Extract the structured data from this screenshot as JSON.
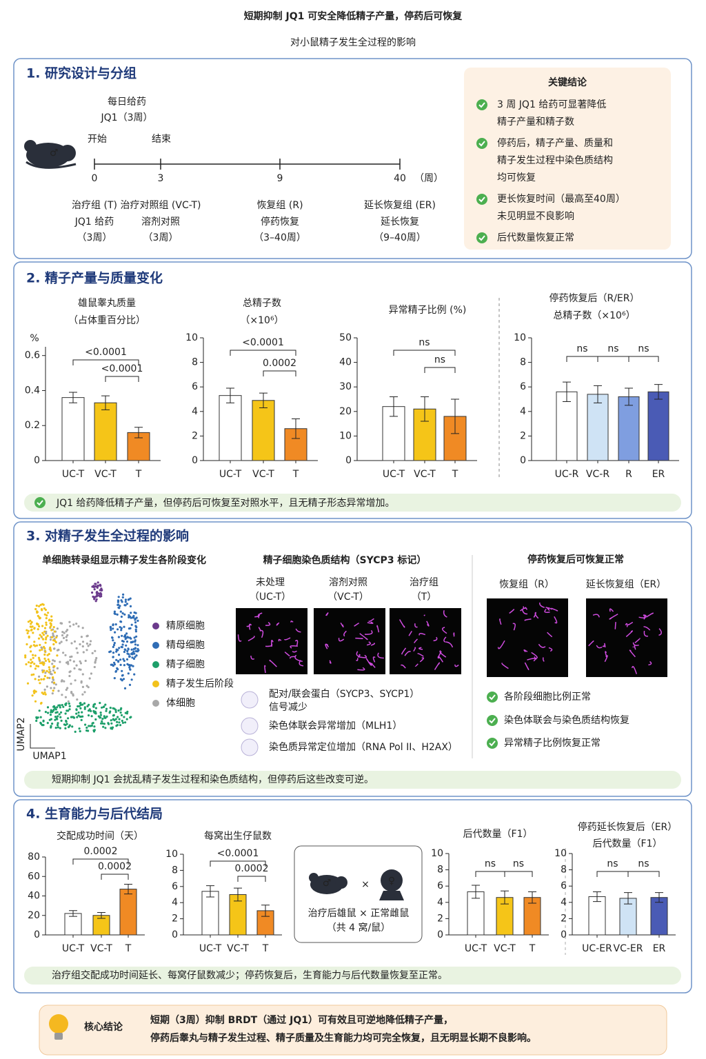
{
  "header": {
    "title": "短期抑制 JQ1 可安全降低精子产量，停药后可恢复",
    "subtitle": "对小鼠精子发生全过程的影响"
  },
  "section1": {
    "title": "1. 研究设计与分组",
    "dosing": [
      "每日给药",
      "JQ1（3周）"
    ],
    "start": "开始",
    "end": "结束",
    "timeline_ticks": [
      0,
      3,
      9,
      40
    ],
    "timeline_unit": "（周）",
    "groups": [
      {
        "name": "治疗组 (T)",
        "color": "#f08a24",
        "lines": [
          "JQ1 给药",
          "（3周）"
        ]
      },
      {
        "name": "治疗对照组 (VC-T)",
        "color": "#eeaa14",
        "lines": [
          "溶剂对照",
          "（3周）"
        ]
      },
      {
        "name": "恢复组 (R)",
        "color": "#2f5fb5",
        "lines": [
          "停药恢复",
          "（3–40周）"
        ]
      },
      {
        "name": "延长恢复组 (ER)",
        "color": "#3a8ad0",
        "lines": [
          "延长恢复",
          "（9–40周）"
        ]
      }
    ],
    "key": {
      "title": "关键结论",
      "items": [
        [
          "3 周 JQ1 给药可显著降低",
          "精子产量和精子数"
        ],
        [
          "停药后，精子产量、质量和",
          "精子发生过程中染色质结构",
          "均可恢复"
        ],
        [
          "更长恢复时间（最高至40周）",
          "未见明显不良影响"
        ],
        [
          "后代数量恢复正常"
        ]
      ]
    }
  },
  "section2": {
    "title": "2. 精子产量与质量变化",
    "note": "JQ1 给药降低精子产量，但停药后可恢复至对照水平，且无精子形态异常增加。"
  },
  "section3": {
    "title": "3. 对精子发生全过程的影响",
    "umap_title": "单细胞转录组显示精子发生各阶段变化",
    "umap_legend": [
      {
        "name": "精原细胞",
        "color": "#6b3a8c"
      },
      {
        "name": "精母细胞",
        "color": "#2f6db5"
      },
      {
        "name": "精子细胞",
        "color": "#1d9f6a"
      },
      {
        "name": "精子发生后阶段",
        "color": "#f2c21b"
      },
      {
        "name": "体细胞",
        "color": "#a8a8a8"
      }
    ],
    "umap_x": "UMAP1",
    "umap_y": "UMAP2",
    "chromatin_title": "精子细胞染色质结构（SYCP3 标记）",
    "chromatin_columns": [
      {
        "lines": [
          "未处理",
          "（UC-T）"
        ],
        "color": "#222222"
      },
      {
        "lines": [
          "溶剂对照",
          "（VC-T）"
        ],
        "color": "#222222"
      },
      {
        "lines": [
          "治疗组",
          "（T）"
        ],
        "color": "#f08a24"
      }
    ],
    "findings": [
      [
        "配对/联会蛋白（SYCP3、SYCP1）",
        "信号减少"
      ],
      [
        "染色体联会异常增加（MLH1）"
      ],
      [
        "染色质异常定位增加（RNA Pol II、H2AX）"
      ]
    ],
    "recovery_title": "停药恢复后可恢复正常",
    "recovery_columns": [
      {
        "label": "恢复组（R）",
        "color": "#5a3a9c"
      },
      {
        "label": "延长恢复组（ER）",
        "color": "#2f7fd0"
      }
    ],
    "recovery_checks": [
      "各阶段细胞比例正常",
      "染色体联会与染色质结构恢复",
      "异常精子比例恢复正常"
    ],
    "note": "短期抑制 JQ1 会扰乱精子发生过程和染色质结构，但停药后这些改变可逆。"
  },
  "section4": {
    "title": "4. 生育能力与后代结局",
    "cross": "×",
    "mating": [
      "治疗后雄鼠 × 正常雌鼠",
      "（共 4 窝/鼠）"
    ],
    "note": "治疗组交配成功时间延长、每窝仔鼠数减少；停药恢复后，生育能力与后代数量恢复至正常。"
  },
  "footer": {
    "title": "核心结论",
    "lines": [
      "短期（3周）抑制 BRDT（通过 JQ1）可有效且可逆地降低精子产量，",
      "停药后睾丸与精子发生过程、精子质量及生育能力均可完全恢复，且无明显长期不良影响。"
    ]
  },
  "chart_data": [
    {
      "type": "bar",
      "title": [
        "雄鼠睾丸质量",
        "（占体重百分比）"
      ],
      "unit": "%",
      "categories": [
        "UC-T",
        "VC-T",
        "T"
      ],
      "values": [
        0.36,
        0.33,
        0.16
      ],
      "errors": [
        0.03,
        0.04,
        0.03
      ],
      "colors": [
        "#ffffff",
        "#f5c518",
        "#f08a24"
      ],
      "ylim": [
        0,
        0.65
      ],
      "yticks": [
        0,
        0.2,
        0.4,
        0.6
      ],
      "comparisons": [
        "<0.0001",
        "<0.0001"
      ]
    },
    {
      "type": "bar",
      "title": [
        "总精子数",
        "（×10⁶）"
      ],
      "categories": [
        "UC-T",
        "VC-T",
        "T"
      ],
      "values": [
        5.3,
        4.9,
        2.6
      ],
      "errors": [
        0.6,
        0.6,
        0.8
      ],
      "colors": [
        "#ffffff",
        "#f5c518",
        "#f08a24"
      ],
      "ylim": [
        0,
        10
      ],
      "yticks": [
        0,
        2,
        4,
        6,
        8,
        10
      ],
      "comparisons": [
        "<0.0001",
        "0.0002"
      ]
    },
    {
      "type": "bar",
      "title": [
        "异常精子比例 (%)"
      ],
      "categories": [
        "UC-T",
        "VC-T",
        "T"
      ],
      "values": [
        22,
        21,
        18
      ],
      "errors": [
        4,
        5,
        7
      ],
      "colors": [
        "#ffffff",
        "#f5c518",
        "#f08a24"
      ],
      "ylim": [
        0,
        50
      ],
      "yticks": [
        0,
        10,
        20,
        30,
        40,
        50
      ],
      "comparisons": [
        "ns",
        "ns"
      ]
    },
    {
      "type": "bar",
      "title": [
        "停药恢复后（R/ER）",
        "总精子数（×10⁶）"
      ],
      "categories": [
        "UC-R",
        "VC-R",
        "R",
        "ER"
      ],
      "values": [
        5.6,
        5.4,
        5.2,
        5.6
      ],
      "errors": [
        0.8,
        0.7,
        0.7,
        0.6
      ],
      "colors": [
        "#ffffff",
        "#cfe3f5",
        "#7f9ee0",
        "#4a5bb5"
      ],
      "ylim": [
        0,
        10
      ],
      "yticks": [
        0,
        2,
        4,
        6,
        8,
        10
      ],
      "comparisons": [
        "ns",
        "ns",
        "ns"
      ]
    },
    {
      "type": "bar",
      "title": [
        "交配成功时间（天）"
      ],
      "categories": [
        "UC-T",
        "VC-T",
        "T"
      ],
      "values": [
        22,
        20,
        47
      ],
      "errors": [
        3,
        3,
        5
      ],
      "colors": [
        "#ffffff",
        "#f5c518",
        "#f08a24"
      ],
      "ylim": [
        0,
        80
      ],
      "yticks": [
        0,
        20,
        40,
        60,
        80
      ],
      "comparisons": [
        "0.0002",
        "0.0002"
      ]
    },
    {
      "type": "bar",
      "title": [
        "每窝出生仔鼠数"
      ],
      "categories": [
        "UC-T",
        "VC-T",
        "T"
      ],
      "values": [
        5.4,
        5.0,
        3.0
      ],
      "errors": [
        0.7,
        0.8,
        0.7
      ],
      "colors": [
        "#ffffff",
        "#f5c518",
        "#f08a24"
      ],
      "ylim": [
        0,
        10
      ],
      "yticks": [
        0,
        2,
        4,
        6,
        8,
        10
      ],
      "comparisons": [
        "<0.0001",
        "0.0002"
      ]
    },
    {
      "type": "bar",
      "title": [
        "后代数量（F1）"
      ],
      "categories": [
        "UC-T",
        "VC-T",
        "T"
      ],
      "values": [
        5.3,
        4.6,
        4.6
      ],
      "errors": [
        0.8,
        0.8,
        0.7
      ],
      "colors": [
        "#ffffff",
        "#f5c518",
        "#f08a24"
      ],
      "ylim": [
        0,
        10
      ],
      "yticks": [
        0,
        2,
        4,
        6,
        8,
        10
      ],
      "comparisons": [
        "ns",
        "ns"
      ]
    },
    {
      "type": "bar",
      "title": [
        "停药延长恢复后（ER）",
        "后代数量（F1）"
      ],
      "categories": [
        "UC-ER",
        "VC-ER",
        "ER"
      ],
      "values": [
        4.7,
        4.5,
        4.6
      ],
      "errors": [
        0.6,
        0.7,
        0.6
      ],
      "colors": [
        "#ffffff",
        "#cfe3f5",
        "#4a5bb5"
      ],
      "ylim": [
        0,
        10
      ],
      "yticks": [
        0,
        2,
        4,
        6,
        8,
        10
      ],
      "comparisons": [
        "ns",
        "ns"
      ]
    }
  ]
}
